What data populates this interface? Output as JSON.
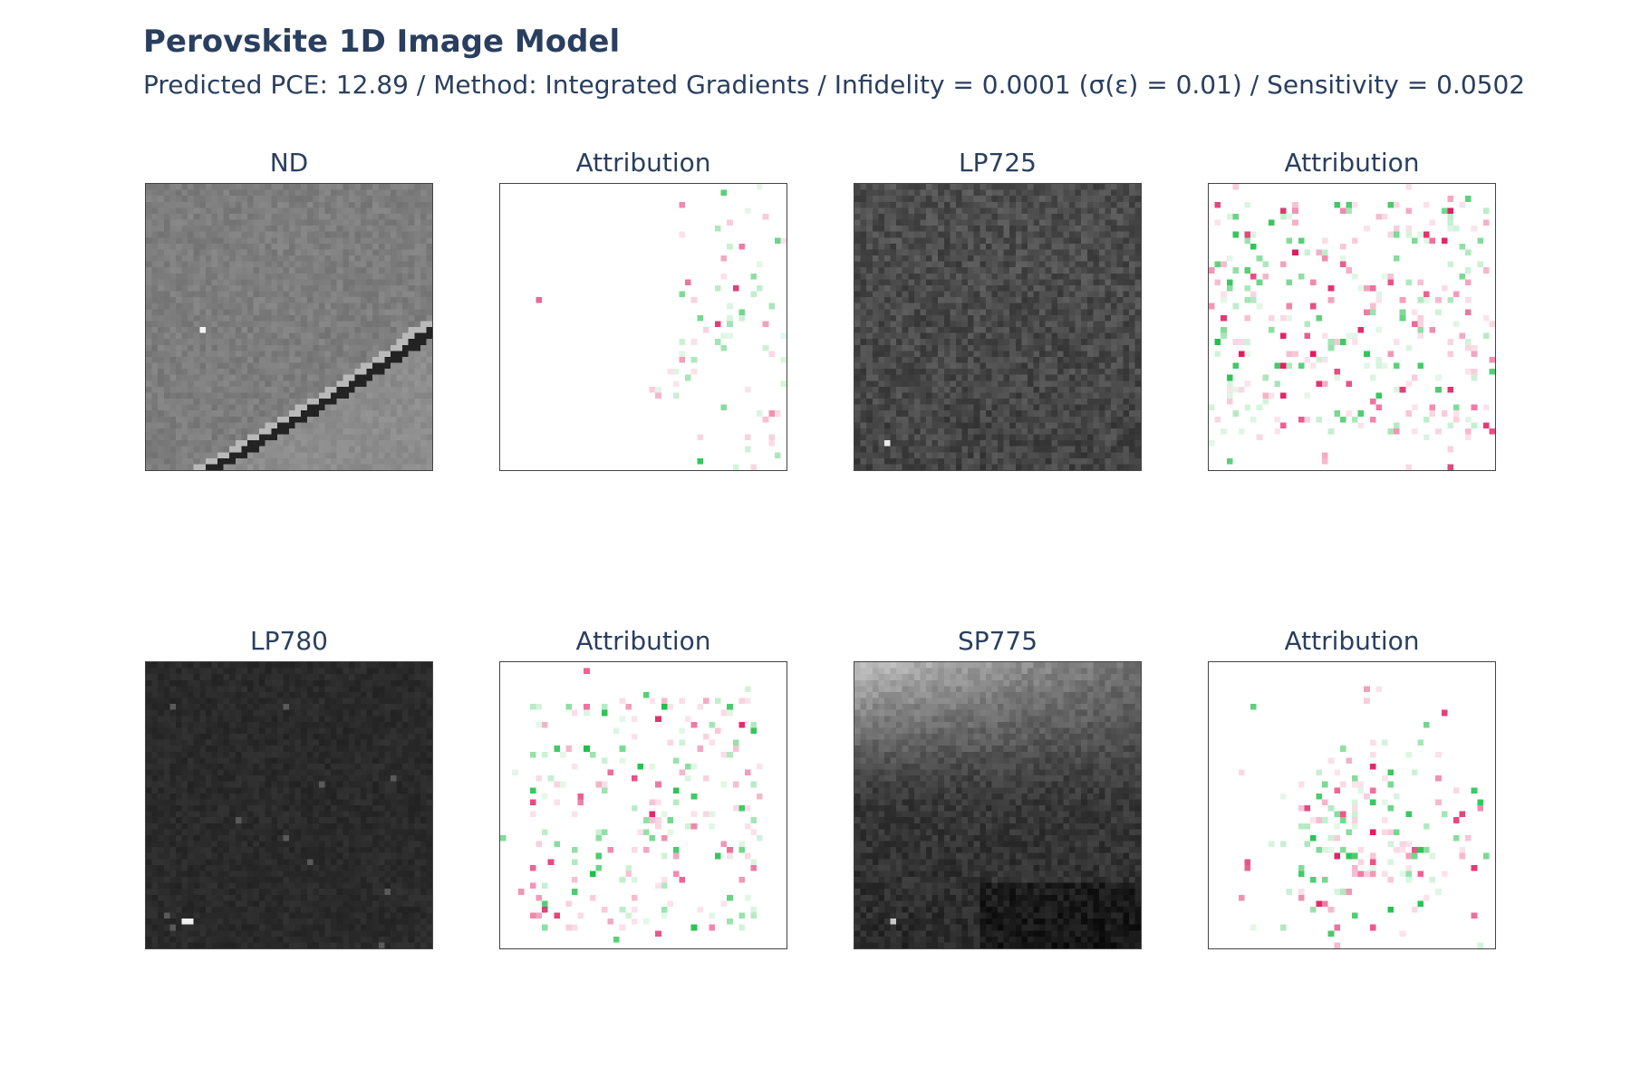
{
  "figure": {
    "title": "Perovskite 1D Image Model",
    "subtitle": "Predicted PCE: 12.89 / Method: Integrated Gradients / Infidelity = 0.0001 (σ(ε) = 0.01) / Sensitivity = 0.0502"
  },
  "colors": {
    "text": "#2a3f5f",
    "frame": "#444444",
    "positive_attribution": "#1fbf4a",
    "negative_attribution": "#e0185c",
    "background": "#ffffff"
  },
  "chart_data": [
    {
      "type": "heatmap",
      "title": "ND",
      "colorscale": "gray",
      "description_content": "filter image"
    },
    {
      "type": "heatmap",
      "title": "Attribution",
      "colorscale": "pink-white-green",
      "description_content": "attribution map"
    },
    {
      "type": "heatmap",
      "title": "LP725",
      "colorscale": "gray",
      "description_content": "filter image"
    },
    {
      "type": "heatmap",
      "title": "Attribution",
      "colorscale": "pink-white-green",
      "description_content": "attribution map"
    },
    {
      "type": "heatmap",
      "title": "LP780",
      "colorscale": "gray",
      "description_content": "filter image"
    },
    {
      "type": "heatmap",
      "title": "Attribution",
      "colorscale": "pink-white-green",
      "description_content": "attribution map"
    },
    {
      "type": "heatmap",
      "title": "SP775",
      "colorscale": "gray",
      "description_content": "filter image"
    },
    {
      "type": "heatmap",
      "title": "Attribution",
      "colorscale": "pink-white-green",
      "description_content": "attribution map"
    }
  ]
}
